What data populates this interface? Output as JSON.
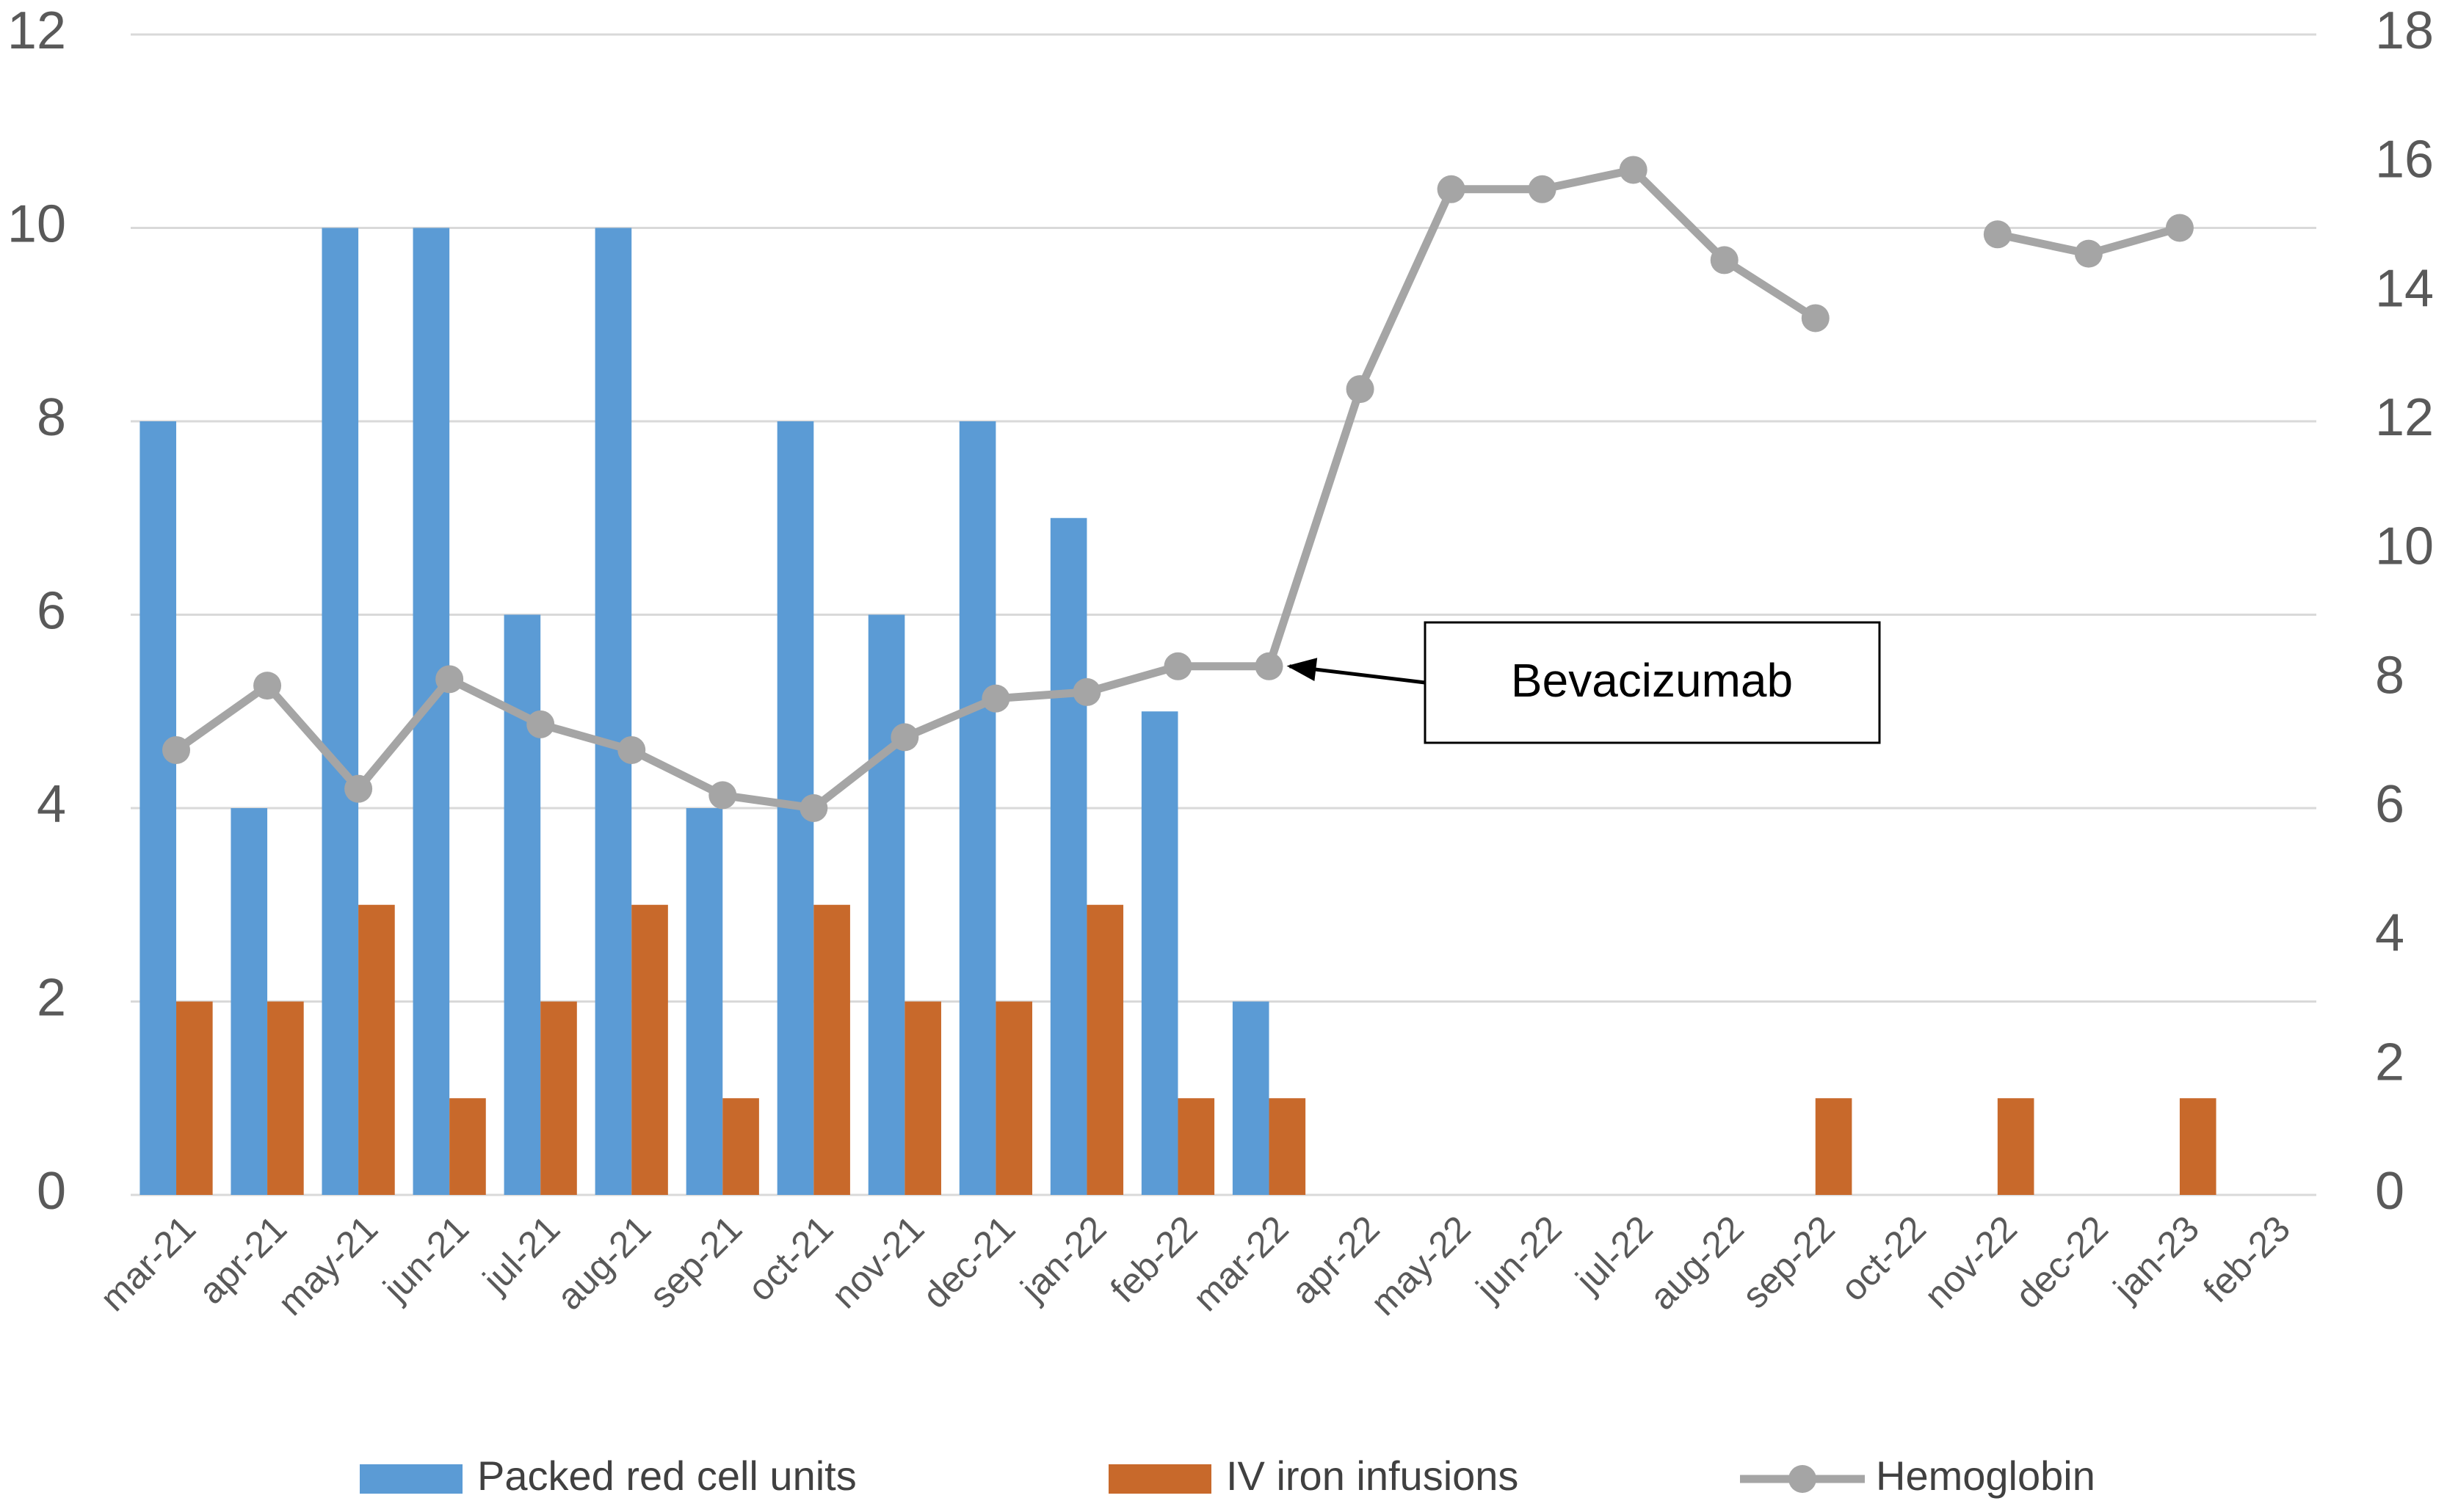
{
  "chart_data": {
    "type": "bar-line",
    "categories": [
      "mar-21",
      "apr-21",
      "may-21",
      "jun-21",
      "jul-21",
      "aug-21",
      "sep-21",
      "oct-21",
      "nov-21",
      "dec-21",
      "jan-22",
      "feb-22",
      "mar-22",
      "apr-22",
      "may-22",
      "jun-22",
      "jul-22",
      "aug-22",
      "sep-22",
      "oct-22",
      "nov-22",
      "dec-22",
      "jan-23",
      "feb-23"
    ],
    "series": [
      {
        "name": "Packed red cell units",
        "type": "bar",
        "color": "#5b9bd5",
        "values": [
          8,
          4,
          10,
          10,
          6,
          10,
          4,
          8,
          6,
          8,
          7,
          5,
          2,
          0,
          0,
          0,
          0,
          0,
          0,
          0,
          0,
          0,
          0,
          0
        ]
      },
      {
        "name": "IV iron infusions",
        "type": "bar",
        "color": "#c8692b",
        "values": [
          2,
          2,
          3,
          1,
          2,
          3,
          1,
          3,
          2,
          2,
          3,
          1,
          1,
          0,
          0,
          0,
          0,
          0,
          1,
          0,
          1,
          0,
          1,
          0
        ]
      },
      {
        "name": "Hemoglobin",
        "type": "line",
        "axis": "y2",
        "color": "#a5a5a5",
        "values": [
          6.9,
          7.9,
          6.3,
          8.0,
          7.3,
          6.9,
          6.2,
          6.0,
          7.1,
          7.7,
          7.8,
          8.2,
          8.2,
          12.5,
          15.6,
          15.6,
          15.9,
          14.5,
          13.6,
          null,
          14.9,
          14.6,
          15.0,
          null
        ]
      }
    ],
    "ylim": [
      0,
      12
    ],
    "yticks": [
      0,
      2,
      4,
      6,
      8,
      10,
      12
    ],
    "y2lim": [
      0,
      18
    ],
    "y2ticks": [
      0,
      2,
      4,
      6,
      8,
      10,
      12,
      14,
      16,
      18
    ],
    "grid": true,
    "legend": "bottom",
    "annotation": "Bevacizumab"
  }
}
